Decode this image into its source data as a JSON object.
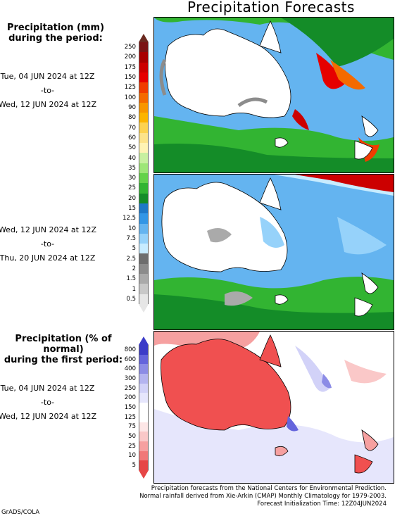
{
  "title": "Precipitation Forecasts",
  "legend1": {
    "header_line1": "Precipitation (mm)",
    "header_line2": "during the period:",
    "ticks": [
      "250",
      "200",
      "175",
      "150",
      "125",
      "100",
      "90",
      "80",
      "70",
      "60",
      "50",
      "40",
      "35",
      "30",
      "25",
      "20",
      "15",
      "12.5",
      "10",
      "7.5",
      "5",
      "2.5",
      "2",
      "1.5",
      "1",
      "0.5"
    ],
    "colors": [
      "#7a1414",
      "#a80000",
      "#cc0000",
      "#e60000",
      "#f03c00",
      "#f46a00",
      "#f89600",
      "#fcb400",
      "#fdd250",
      "#fde38a",
      "#fff3b4",
      "#c8f0a0",
      "#9ee678",
      "#64d24a",
      "#32b432",
      "#148c28",
      "#1e78c8",
      "#3296e6",
      "#64b4f0",
      "#96d2fa",
      "#c8ecff",
      "#6e6e6e",
      "#8c8c8c",
      "#aaaaaa",
      "#c8c8c8",
      "#e6e6e6"
    ]
  },
  "period1": {
    "start": "Tue, 04 JUN 2024 at 12Z",
    "to": "-to-",
    "end": "Wed, 12 JUN 2024 at 12Z"
  },
  "period2": {
    "start": "Wed, 12 JUN 2024 at 12Z",
    "to": "-to-",
    "end": "Thu, 20 JUN 2024 at 12Z"
  },
  "legend2": {
    "header_line1": "Precipitation (% of normal)",
    "header_line2": "during the first period:",
    "ticks": [
      "800",
      "600",
      "400",
      "300",
      "250",
      "200",
      "150",
      "125",
      "75",
      "50",
      "25",
      "10",
      "5"
    ],
    "colors": [
      "#3c3cc8",
      "#6464dc",
      "#8c8ce6",
      "#b4b4f0",
      "#d2d2f8",
      "#e6e6fc",
      "#ffffff",
      "#ffffff",
      "#fde6e6",
      "#fac8c8",
      "#f6a0a0",
      "#f07878",
      "#e64646"
    ]
  },
  "period3": {
    "start": "Tue, 04 JUN 2024 at 12Z",
    "to": "-to-",
    "end": "Wed, 12 JUN 2024 at 12Z"
  },
  "footer": {
    "line1": "Precipitation forecasts from the National Centers for Environmental Prediction.",
    "line2": "Normal rainfall derived from Xie-Arkin (CMAP) Monthly Climatology for 1979-2003.",
    "line3": "Forecast Initialization Time: 12Z04JUN2024"
  },
  "credit": "GrADS/COLA"
}
